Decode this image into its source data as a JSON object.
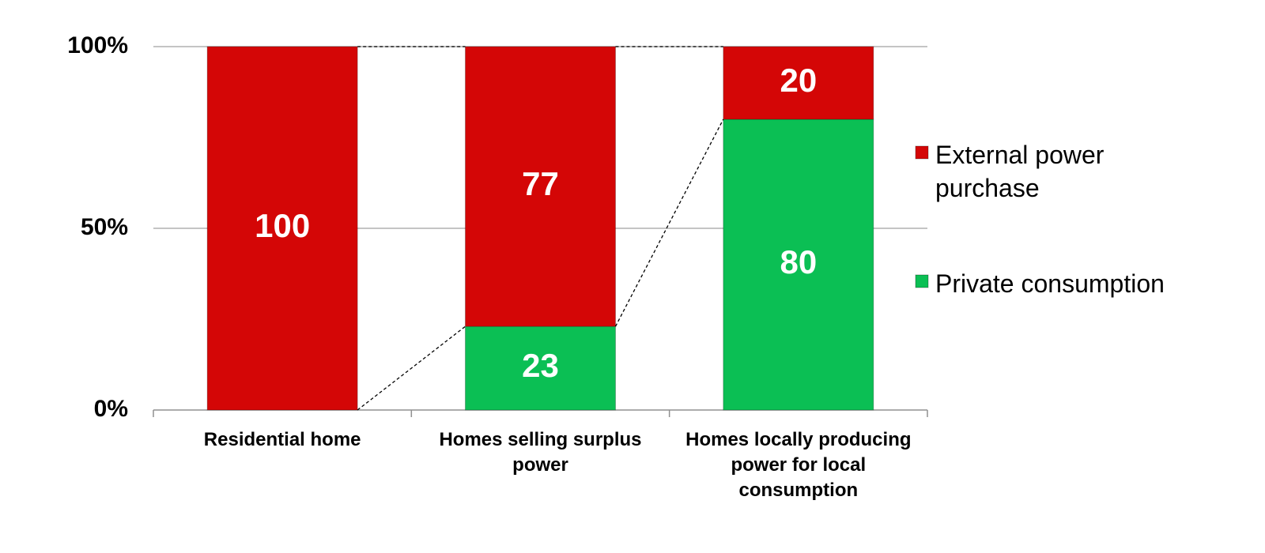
{
  "chart_data": {
    "type": "stacked-bar",
    "categories": [
      "Residential home",
      "Homes selling surplus power",
      "Homes locally producing power for local consumption"
    ],
    "series": [
      {
        "name": "Private consumption",
        "color": "#0bbf54",
        "values": [
          0,
          23,
          80
        ]
      },
      {
        "name": "External power purchase",
        "color": "#d40606",
        "values": [
          100,
          77,
          20
        ]
      }
    ],
    "ylim": [
      0,
      100
    ],
    "yticks": [
      {
        "value": 0,
        "label": "0%"
      },
      {
        "value": 50,
        "label": "50%"
      },
      {
        "value": 100,
        "label": "100%"
      }
    ],
    "grid": true
  }
}
